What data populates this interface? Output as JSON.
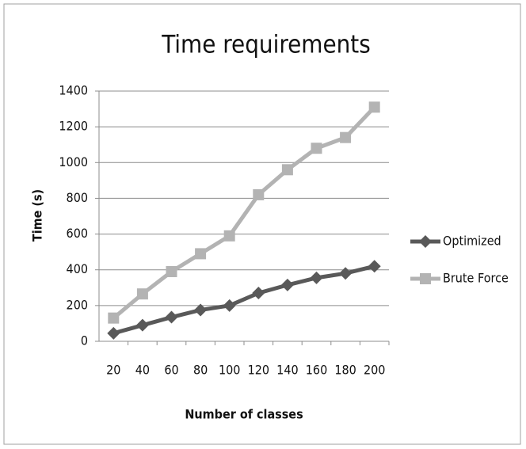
{
  "chart_data": {
    "type": "line",
    "title": "Time requirements",
    "x_label": "Number of classes",
    "y_label": "Time (s)",
    "categories": [
      20,
      40,
      60,
      80,
      100,
      120,
      140,
      160,
      180,
      200
    ],
    "series": [
      {
        "name": "Optimized",
        "color": "#595959",
        "marker": "diamond",
        "values": [
          45,
          90,
          135,
          175,
          200,
          270,
          315,
          355,
          380,
          420
        ]
      },
      {
        "name": "Brute Force",
        "color": "#b3b3b3",
        "marker": "square",
        "values": [
          130,
          265,
          390,
          490,
          590,
          820,
          960,
          1080,
          1140,
          1310
        ]
      }
    ],
    "ylim": [
      0,
      1400
    ],
    "yticks": [
      0,
      200,
      400,
      600,
      800,
      1000,
      1200,
      1400
    ],
    "grid": true,
    "legend": "right"
  }
}
